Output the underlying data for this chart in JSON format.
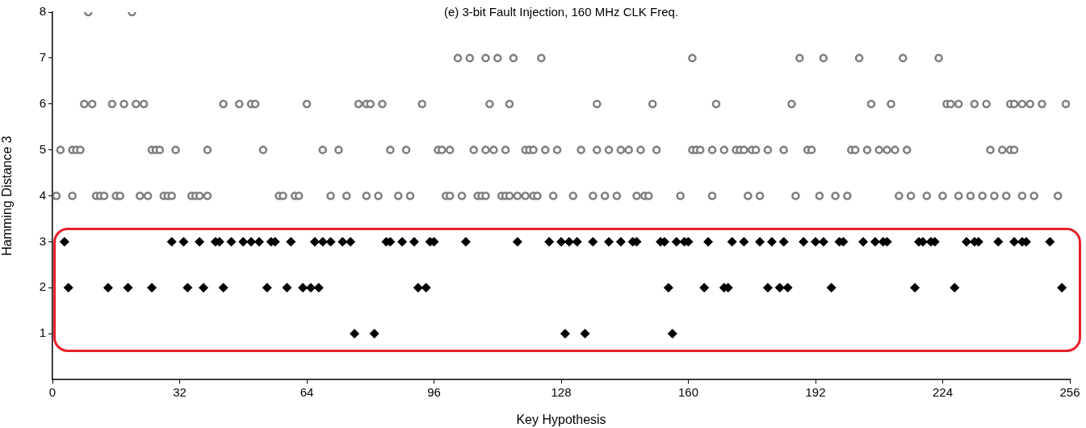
{
  "chart_data": {
    "type": "scatter",
    "title": "(e) 3-bit Fault Injection, 160 MHz CLK Freq.",
    "xlabel": "Key Hypothesis",
    "ylabel": "Hamming Distance 3",
    "xlim": [
      0,
      256
    ],
    "xticks": [
      0,
      32,
      64,
      96,
      128,
      160,
      192,
      224,
      256
    ],
    "ylim": [
      0,
      8
    ],
    "yticks": [
      1,
      2,
      3,
      4,
      5,
      6,
      7,
      8
    ],
    "series": [
      {
        "color": "#808080",
        "marker": "circle",
        "x": [
          9,
          20,
          102,
          105,
          109,
          112,
          116,
          123,
          161,
          188,
          194,
          203,
          214,
          223,
          8,
          10,
          15,
          18,
          21,
          23,
          43,
          47,
          50,
          51,
          64,
          77,
          79,
          80,
          83,
          93,
          110,
          115,
          137,
          151,
          167,
          186,
          206,
          211,
          225,
          226,
          228,
          232,
          235,
          241,
          242,
          244,
          246,
          249,
          255,
          2,
          5,
          6,
          7,
          25,
          26,
          27,
          31,
          39,
          53,
          68,
          72,
          85,
          89,
          97,
          98,
          100,
          106,
          109,
          111,
          114,
          119,
          120,
          121,
          124,
          127,
          133,
          137,
          140,
          143,
          145,
          148,
          152,
          161,
          162,
          163,
          166,
          169,
          172,
          173,
          174,
          176,
          177,
          180,
          184,
          190,
          191,
          201,
          202,
          205,
          208,
          210,
          212,
          215,
          236,
          239,
          241,
          242,
          0,
          1,
          5,
          11,
          12,
          13,
          16,
          17,
          22,
          24,
          28,
          29,
          30,
          35,
          36,
          37,
          39,
          57,
          58,
          61,
          62,
          70,
          74,
          79,
          82,
          87,
          90,
          99,
          100,
          103,
          107,
          108,
          109,
          113,
          114,
          115,
          117,
          119,
          121,
          122,
          126,
          131,
          136,
          139,
          142,
          147,
          149,
          150,
          158,
          166,
          175,
          178,
          187,
          193,
          197,
          200,
          213,
          216,
          220,
          224,
          228,
          231,
          234,
          237,
          240,
          244,
          247,
          253
        ],
        "values": [
          8,
          8,
          7,
          7,
          7,
          7,
          7,
          7,
          7,
          7,
          7,
          7,
          7,
          7,
          6,
          6,
          6,
          6,
          6,
          6,
          6,
          6,
          6,
          6,
          6,
          6,
          6,
          6,
          6,
          6,
          6,
          6,
          6,
          6,
          6,
          6,
          6,
          6,
          6,
          6,
          6,
          6,
          6,
          6,
          6,
          6,
          6,
          6,
          6,
          5,
          5,
          5,
          5,
          5,
          5,
          5,
          5,
          5,
          5,
          5,
          5,
          5,
          5,
          5,
          5,
          5,
          5,
          5,
          5,
          5,
          5,
          5,
          5,
          5,
          5,
          5,
          5,
          5,
          5,
          5,
          5,
          5,
          5,
          5,
          5,
          5,
          5,
          5,
          5,
          5,
          5,
          5,
          5,
          5,
          5,
          5,
          5,
          5,
          5,
          5,
          5,
          5,
          5,
          5,
          5,
          5,
          5,
          4,
          4,
          4,
          4,
          4,
          4,
          4,
          4,
          4,
          4,
          4,
          4,
          4,
          4,
          4,
          4,
          4,
          4,
          4,
          4,
          4,
          4,
          4,
          4,
          4,
          4,
          4,
          4,
          4,
          4,
          4,
          4,
          4,
          4,
          4,
          4,
          4,
          4,
          4,
          4,
          4,
          4,
          4,
          4,
          4,
          4,
          4,
          4,
          4,
          4,
          4,
          4,
          4,
          4,
          4,
          4,
          4,
          4,
          4,
          4,
          4,
          4,
          4,
          4,
          4,
          4,
          4,
          4
        ]
      },
      {
        "color": "#000000",
        "marker": "diamond",
        "x": [
          3,
          30,
          33,
          37,
          41,
          42,
          45,
          48,
          50,
          52,
          55,
          56,
          60,
          66,
          68,
          70,
          73,
          75,
          84,
          85,
          88,
          91,
          95,
          96,
          104,
          117,
          125,
          128,
          130,
          132,
          136,
          140,
          143,
          146,
          147,
          153,
          154,
          157,
          159,
          160,
          165,
          171,
          174,
          178,
          181,
          184,
          189,
          192,
          194,
          198,
          199,
          204,
          207,
          209,
          210,
          218,
          219,
          221,
          222,
          230,
          232,
          233,
          238,
          242,
          244,
          245,
          251,
          4,
          14,
          19,
          25,
          34,
          38,
          43,
          54,
          59,
          63,
          65,
          67,
          92,
          94,
          155,
          164,
          169,
          170,
          180,
          183,
          185,
          196,
          217,
          227,
          254,
          76,
          81,
          129,
          134,
          156
        ],
        "values": [
          3,
          3,
          3,
          3,
          3,
          3,
          3,
          3,
          3,
          3,
          3,
          3,
          3,
          3,
          3,
          3,
          3,
          3,
          3,
          3,
          3,
          3,
          3,
          3,
          3,
          3,
          3,
          3,
          3,
          3,
          3,
          3,
          3,
          3,
          3,
          3,
          3,
          3,
          3,
          3,
          3,
          3,
          3,
          3,
          3,
          3,
          3,
          3,
          3,
          3,
          3,
          3,
          3,
          3,
          3,
          3,
          3,
          3,
          3,
          3,
          3,
          3,
          3,
          3,
          3,
          3,
          3,
          2,
          2,
          2,
          2,
          2,
          2,
          2,
          2,
          2,
          2,
          2,
          2,
          2,
          2,
          2,
          2,
          2,
          2,
          2,
          2,
          2,
          2,
          2,
          2,
          2,
          1,
          1,
          1,
          1,
          1
        ]
      }
    ]
  }
}
